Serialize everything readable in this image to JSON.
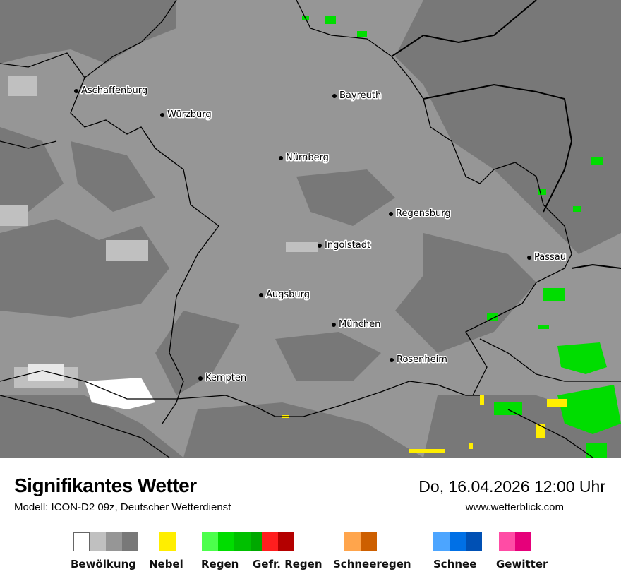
{
  "map": {
    "colors": {
      "cloud_light": "#c0c0c0",
      "cloud_mid": "#969696",
      "cloud_dark": "#787878",
      "rain": "#00dd00",
      "fog": "#ffee00",
      "border": "#000000"
    },
    "cities": [
      {
        "name": "Aschaffenburg"
      },
      {
        "name": "Würzburg"
      },
      {
        "name": "Bayreuth"
      },
      {
        "name": "Nürnberg"
      },
      {
        "name": "Regensburg"
      },
      {
        "name": "Ingolstadt"
      },
      {
        "name": "Passau"
      },
      {
        "name": "Augsburg"
      },
      {
        "name": "München"
      },
      {
        "name": "Rosenheim"
      },
      {
        "name": "Kempten"
      }
    ]
  },
  "footer": {
    "title": "Signifikantes Wetter",
    "subtitle": "Modell: ICON-D2 09z, Deutscher Wetterdienst",
    "datetime": "Do, 16.04.2026 12:00 Uhr",
    "website": "www.wetterblick.com"
  },
  "legend": [
    {
      "label": "Bewölkung",
      "colors": [
        "#ffffff",
        "#c0c0c0",
        "#969696",
        "#787878"
      ]
    },
    {
      "label": "Nebel",
      "colors": [
        "#ffee00"
      ]
    },
    {
      "label": "Regen",
      "colors": [
        "#4cff4c",
        "#00dd00",
        "#00c000",
        "#00a800"
      ]
    },
    {
      "label": "Gefr. Regen",
      "colors": [
        "#ff1e1e",
        "#b40000"
      ]
    },
    {
      "label": "Schneeregen",
      "colors": [
        "#ffa54c",
        "#cd5f00"
      ]
    },
    {
      "label": "Schnee",
      "colors": [
        "#4ca5ff",
        "#0070e6",
        "#0050b4"
      ]
    },
    {
      "label": "Gewitter",
      "colors": [
        "#ff4ca5",
        "#e6007a"
      ]
    }
  ]
}
